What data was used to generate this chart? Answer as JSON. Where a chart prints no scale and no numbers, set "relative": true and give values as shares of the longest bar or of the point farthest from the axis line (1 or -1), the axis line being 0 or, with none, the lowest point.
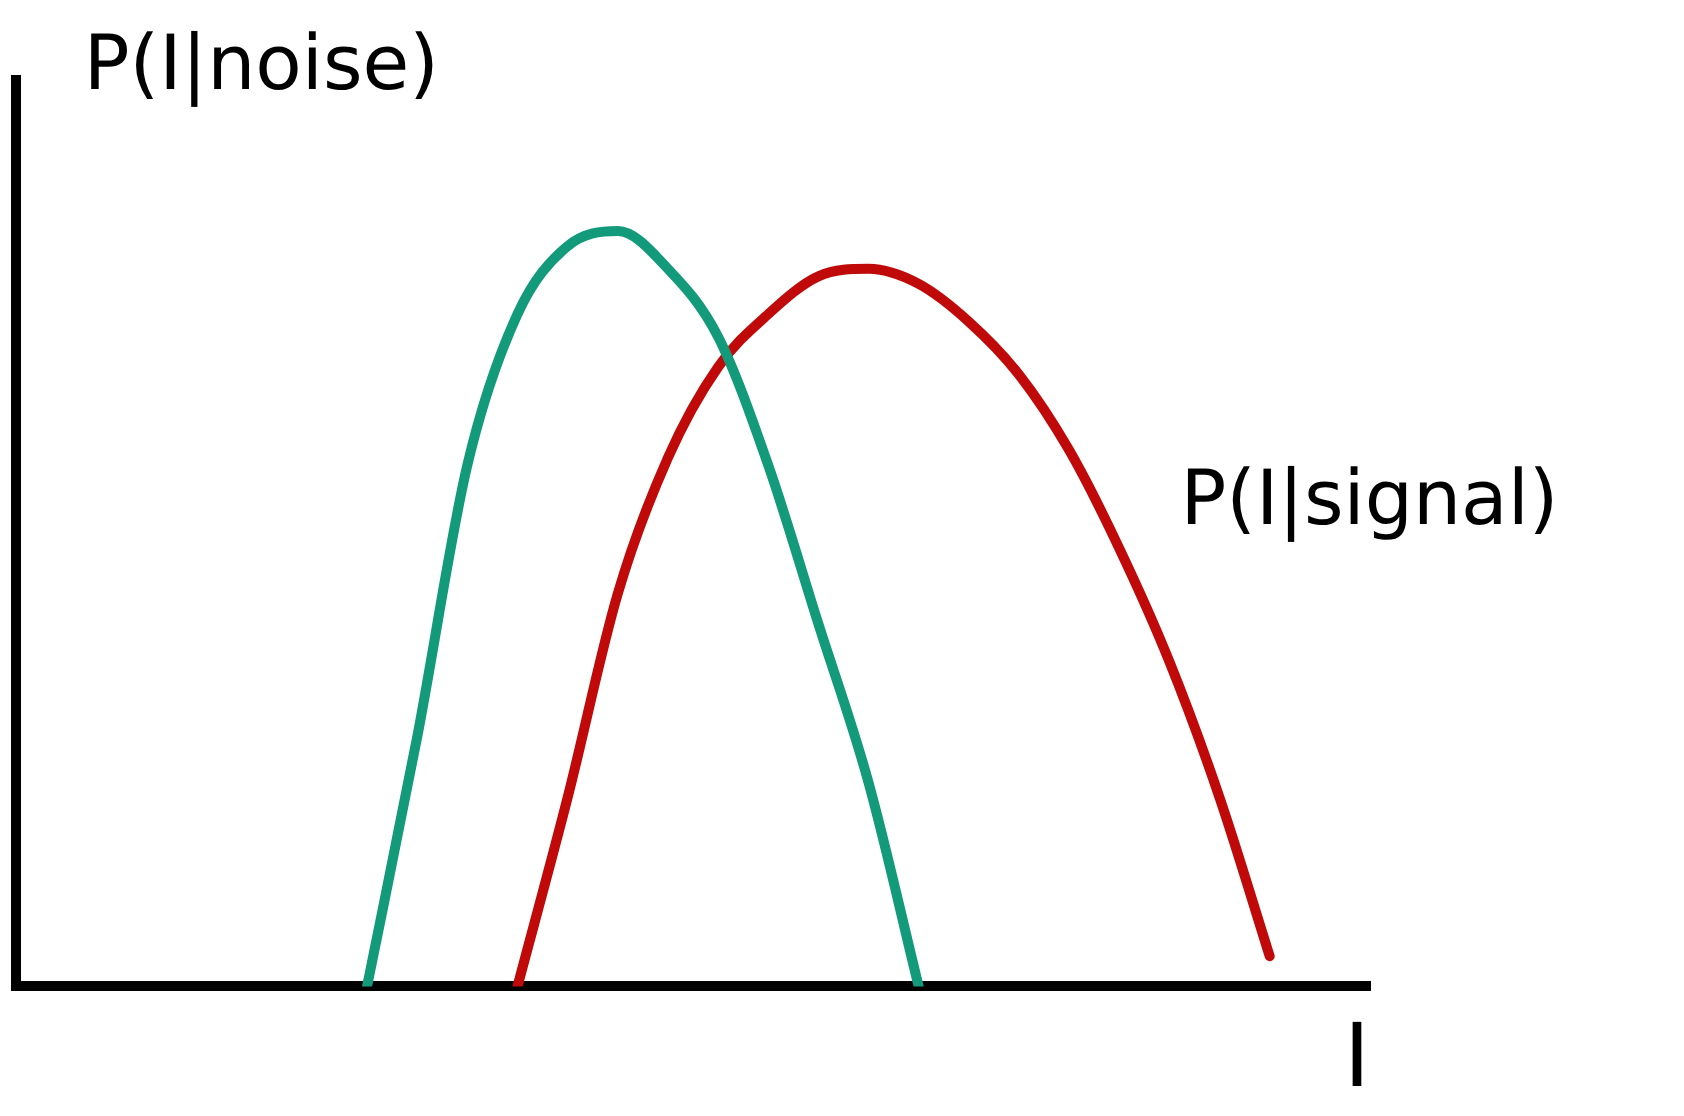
{
  "chart_data": {
    "type": "line",
    "relative": true,
    "xlabel": "I",
    "legend": false,
    "grid": false,
    "marker": "none",
    "line_style": "solid",
    "tick_labels": false,
    "categories": [
      null,
      null,
      null,
      null,
      null,
      null,
      null,
      null,
      null,
      null,
      null,
      null,
      null,
      null,
      null,
      null,
      null,
      null,
      null,
      null,
      null,
      null,
      null,
      null,
      null,
      null,
      null,
      null
    ],
    "series": [
      {
        "name": "P(I|noise)",
        "color": "#129a7b",
        "values": [
          null,
          null,
          null,
          null,
          null,
          null,
          null,
          0,
          0.33,
          0.69,
          0.89,
          0.98,
          1,
          0.95,
          0.86,
          0.69,
          0.48,
          0.27,
          0,
          null,
          null,
          null,
          null,
          null,
          null,
          null,
          null,
          null
        ]
      },
      {
        "name": "P(I|signal)",
        "color": "#c00a0a",
        "values": [
          null,
          null,
          null,
          null,
          null,
          null,
          null,
          null,
          null,
          null,
          0,
          0.25,
          0.52,
          0.7,
          0.82,
          0.89,
          0.94,
          0.95,
          0.93,
          0.88,
          0.81,
          0.71,
          0.58,
          0.43,
          0.25,
          0.04,
          null,
          null
        ]
      }
    ]
  }
}
